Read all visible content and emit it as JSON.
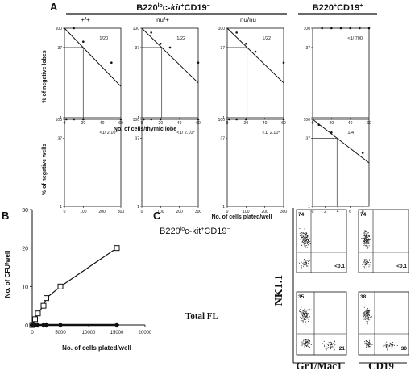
{
  "panel_a": {
    "letter": "A",
    "group_left": {
      "prefix": "B220",
      "sup": "lo",
      "mid": "c-",
      "italic": "kit",
      "sup2": "+",
      "tail": "CD19",
      "sup3": "−"
    },
    "group_right": {
      "prefix": "B220",
      "sup": "+",
      "tail": "CD19",
      "sup2": "+"
    },
    "col_headers": [
      "+/+",
      "nu/+",
      "nu/nu",
      ""
    ],
    "row1_ylabel": "% of negative lobes",
    "row1_xlabel": "No. of cells/thymic lobe",
    "row2_ylabel": "% of negative wells",
    "row2_xlabel": "No. of cells plated/well"
  },
  "panel_b": {
    "letter": "B",
    "ylabel": "No. of CFU/well",
    "xlabel": "No. of cells plated/well"
  },
  "panel_c": {
    "letter": "C",
    "title": {
      "prefix": "B220",
      "sup": "lo",
      "mid": "c-kit",
      "sup2": "+",
      "tail": "CD19",
      "sup3": "−"
    },
    "row_label_bottom": "Total FL",
    "yaxis_label": "NK1.1",
    "xaxis_labels": [
      "Gr1/Mac1",
      "CD19"
    ],
    "quadrants": [
      {
        "top_left": "74",
        "bottom_right": "<0.1"
      },
      {
        "top_left": "74",
        "bottom_right": "<0.1"
      },
      {
        "top_left": "35",
        "bottom_right": "21"
      },
      {
        "top_left": "38",
        "bottom_right": "30"
      }
    ]
  },
  "chart_data": [
    {
      "type": "line",
      "panel": "A-row1-1",
      "title": "+/+",
      "annotation": "1/20",
      "x": [
        10,
        20,
        50
      ],
      "y": [
        100,
        50,
        17
      ],
      "fit_x": [
        0,
        60
      ],
      "fit_y": [
        100,
        5
      ],
      "xticks": [
        0,
        20,
        40,
        60
      ],
      "yticks": [
        100,
        37,
        1
      ],
      "xlim": [
        0,
        60
      ],
      "ylim": [
        1,
        100
      ],
      "yscale": "log"
    },
    {
      "type": "line",
      "panel": "A-row1-2",
      "title": "nu/+",
      "annotation": "1/22",
      "x": [
        10,
        20,
        30,
        60
      ],
      "y": [
        80,
        45,
        37,
        17
      ],
      "fit_x": [
        0,
        60
      ],
      "fit_y": [
        100,
        6
      ],
      "xticks": [
        0,
        20,
        40,
        60
      ],
      "yticks": [
        100,
        37,
        1
      ],
      "xlim": [
        0,
        60
      ],
      "ylim": [
        1,
        100
      ],
      "yscale": "log"
    },
    {
      "type": "line",
      "panel": "A-row1-3",
      "title": "nu/nu",
      "annotation": "1/22",
      "x": [
        10,
        20,
        30,
        60
      ],
      "y": [
        80,
        45,
        30,
        17
      ],
      "fit_x": [
        0,
        60
      ],
      "fit_y": [
        100,
        6
      ],
      "xticks": [
        0,
        20,
        40,
        60
      ],
      "yticks": [
        100,
        37,
        1
      ],
      "xlim": [
        0,
        60
      ],
      "ylim": [
        1,
        100
      ],
      "yscale": "log"
    },
    {
      "type": "scatter",
      "panel": "A-row1-4",
      "annotation": "<1/ 700",
      "x": [
        10,
        20,
        30,
        40,
        50,
        60
      ],
      "y": [
        100,
        100,
        100,
        100,
        100,
        100
      ],
      "xticks": [
        0,
        20,
        40,
        60
      ],
      "yticks": [
        100,
        37,
        1
      ],
      "xlim": [
        0,
        60
      ],
      "ylim": [
        1,
        100
      ],
      "yscale": "log"
    },
    {
      "type": "scatter",
      "panel": "A-row2-1",
      "annotation": "<1/ 2.10⁴",
      "x": [
        10,
        50,
        100,
        300
      ],
      "y": [
        100,
        100,
        100,
        100
      ],
      "xticks": [
        0,
        100,
        200,
        300
      ],
      "yticks": [
        100,
        37,
        1
      ],
      "xlim": [
        0,
        300
      ],
      "ylim": [
        1,
        100
      ],
      "yscale": "log"
    },
    {
      "type": "scatter",
      "panel": "A-row2-2",
      "annotation": "<1/ 2.10⁴",
      "x": [
        10,
        50,
        100,
        300
      ],
      "y": [
        100,
        100,
        100,
        100
      ],
      "xticks": [
        0,
        100,
        200,
        300
      ],
      "yticks": [
        100,
        37,
        1
      ],
      "xlim": [
        0,
        300
      ],
      "ylim": [
        1,
        100
      ],
      "yscale": "log"
    },
    {
      "type": "scatter",
      "panel": "A-row2-3",
      "annotation": "<1/ 2.10⁴",
      "x": [
        10,
        50,
        100,
        300
      ],
      "y": [
        100,
        100,
        100,
        100
      ],
      "xticks": [
        0,
        100,
        200,
        300
      ],
      "yticks": [
        100,
        37,
        1
      ],
      "xlim": [
        0,
        300
      ],
      "ylim": [
        1,
        100
      ],
      "yscale": "log"
    },
    {
      "type": "line",
      "panel": "A-row2-4",
      "annotation": "1/4",
      "x": [
        1,
        3,
        8
      ],
      "y": [
        75,
        50,
        17
      ],
      "fit_x": [
        0,
        9
      ],
      "fit_y": [
        100,
        10
      ],
      "xticks": [
        0,
        2,
        4,
        6,
        8
      ],
      "yticks": [
        100,
        37,
        1
      ],
      "xlim": [
        0,
        9
      ],
      "ylim": [
        1,
        100
      ],
      "yscale": "log"
    },
    {
      "type": "line",
      "panel": "B",
      "xlim": [
        0,
        20000
      ],
      "ylim": [
        0,
        30
      ],
      "xticks": [
        0,
        5000,
        10000,
        15000,
        20000
      ],
      "yticks": [
        0,
        10,
        20,
        30
      ],
      "series": [
        {
          "x": [
            0,
            500,
            1000,
            2000,
            2500,
            5000,
            15000
          ],
          "y": [
            0,
            1.5,
            3,
            5,
            7,
            10,
            20
          ]
        },
        {
          "x": [
            0,
            500,
            1000,
            2000,
            2500,
            5000,
            15000
          ],
          "y": [
            0,
            0,
            0,
            0,
            0,
            0,
            0
          ]
        }
      ]
    }
  ]
}
